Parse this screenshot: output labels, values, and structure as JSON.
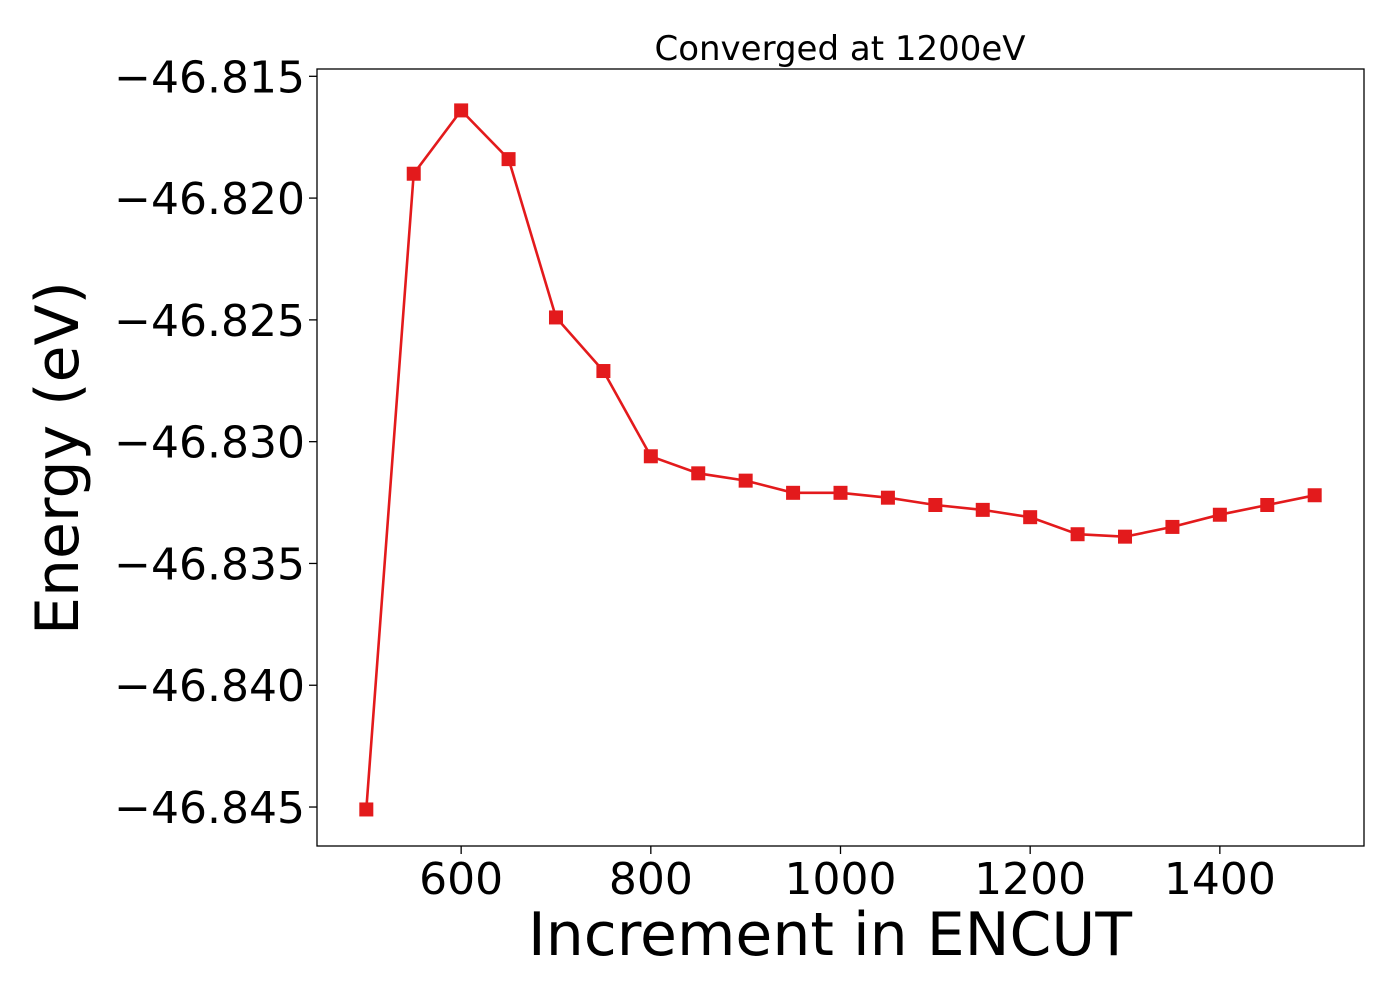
{
  "chart_data": {
    "type": "line",
    "title": "Converged at 1200eV",
    "xlabel": "Increment in ENCUT",
    "ylabel": "Energy (eV)",
    "xlim": [
      448,
      1552
    ],
    "ylim": [
      -46.8466,
      -46.8147
    ],
    "xticks": [
      600,
      800,
      1000,
      1200,
      1400
    ],
    "yticks": [
      -46.815,
      -46.82,
      -46.825,
      -46.83,
      -46.835,
      -46.84,
      -46.845
    ],
    "ytick_labels": [
      "−46.815",
      "−46.820",
      "−46.825",
      "−46.830",
      "−46.835",
      "−46.840",
      "−46.845"
    ],
    "grid": false,
    "legend": "none",
    "series": [
      {
        "color": "#e31a1c",
        "marker": "square",
        "x": [
          500,
          550,
          600,
          650,
          700,
          750,
          800,
          850,
          900,
          950,
          1000,
          1050,
          1100,
          1150,
          1200,
          1250,
          1300,
          1350,
          1400,
          1450,
          1500
        ],
        "y": [
          -46.8451,
          -46.819,
          -46.8164,
          -46.8184,
          -46.8249,
          -46.8271,
          -46.8306,
          -46.8313,
          -46.8316,
          -46.8321,
          -46.8321,
          -46.8323,
          -46.8326,
          -46.8328,
          -46.8331,
          -46.8338,
          -46.8339,
          -46.8335,
          -46.833,
          -46.8326,
          -46.8322
        ]
      }
    ]
  }
}
